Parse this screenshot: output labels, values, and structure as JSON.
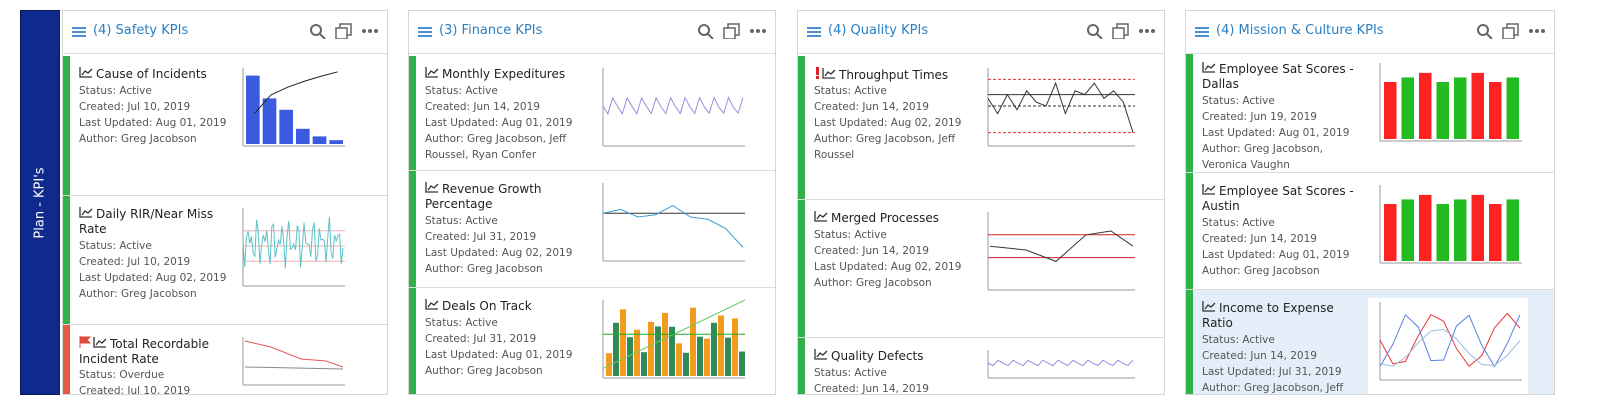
{
  "sidebar": "Plan - KPI's",
  "panels": [
    {
      "title": "(4) Safety KPIs",
      "cards": [
        {
          "title": "Cause of Incidents",
          "lines": [
            "Status: Active",
            "Created: Jul 10, 2019",
            "Last Updated: Aug 01, 2019",
            "Author: Greg Jacobson"
          ]
        },
        {
          "title": "Daily RIR/Near Miss Rate",
          "lines": [
            "Status: Active",
            "Created: Jul 10, 2019",
            "Last Updated: Aug 02, 2019",
            "Author: Greg Jacobson"
          ]
        },
        {
          "title": "Total Recordable Incident Rate",
          "lines": [
            "Status: Overdue",
            "Created: Jul 10, 2019"
          ]
        }
      ]
    },
    {
      "title": "(3) Finance KPIs",
      "cards": [
        {
          "title": "Monthly Expeditures",
          "lines": [
            "Status: Active",
            "Created: Jun 14, 2019",
            "Last Updated: Aug 01, 2019",
            "Author: Greg Jacobson, Jeff Roussel, Ryan Confer"
          ]
        },
        {
          "title": "Revenue Growth Percentage",
          "lines": [
            "Status: Active",
            "Created: Jul 31, 2019",
            "Last Updated: Aug 02, 2019",
            "Author: Greg Jacobson"
          ]
        },
        {
          "title": "Deals On Track",
          "lines": [
            "Status: Active",
            "Created: Jul 31, 2019",
            "Last Updated: Aug 01, 2019",
            "Author: Greg Jacobson"
          ]
        }
      ]
    },
    {
      "title": "(4) Quality KPIs",
      "cards": [
        {
          "title": "Throughput Times",
          "lines": [
            "Status: Active",
            "Created: Jun 14, 2019",
            "Last Updated: Aug 02, 2019",
            "Author: Greg Jacobson, Jeff Roussel"
          ]
        },
        {
          "title": "Merged Processes",
          "lines": [
            "Status: Active",
            "Created: Jun 14, 2019",
            "Last Updated: Aug 02, 2019",
            "Author: Greg Jacobson"
          ]
        },
        {
          "title": "Quality Defects",
          "lines": [
            "Status: Active",
            "Created: Jun 14, 2019"
          ]
        }
      ]
    },
    {
      "title": "(4) Mission & Culture KPIs",
      "cards": [
        {
          "title": "Employee Sat Scores - Dallas",
          "lines": [
            "Status: Active",
            "Created: Jun 19, 2019",
            "Last Updated: Aug 01, 2019",
            "Author: Greg Jacobson, Veronica Vaughn"
          ]
        },
        {
          "title": "Employee Sat Scores - Austin",
          "lines": [
            "Status: Active",
            "Created: Jun 14, 2019",
            "Last Updated: Aug 01, 2019",
            "Author: Greg Jacobson"
          ]
        },
        {
          "title": "Income to Expense Ratio",
          "lines": [
            "Status: Active",
            "Created: Jun 14, 2019",
            "Last Updated: Jul 31, 2019",
            "Author: Greg Jacobson, Jeff Roussel, Ryan Confer"
          ]
        }
      ]
    }
  ]
}
